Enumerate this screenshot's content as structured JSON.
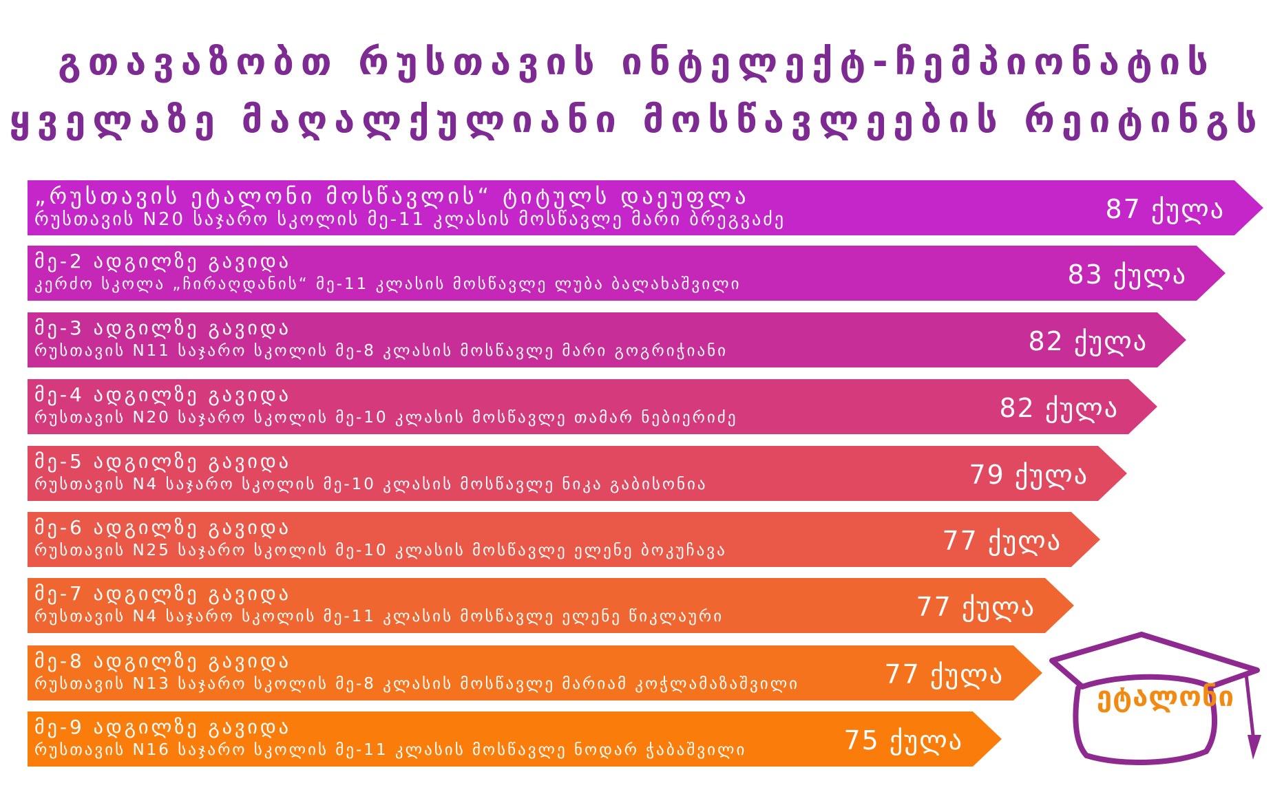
{
  "title": {
    "line1": "გთავაზობთ რუსთავის ინტელექტ-ჩემპიონატის",
    "line2": "ყველაზე მაღალქულიანი მოსწავლეების რეიტინგს"
  },
  "rows": [
    {
      "line1": "„რუსთავის ეტალონი მოსწავლის“ ტიტულს დაეუფლა",
      "line2": "რუსთავის N20 საჯარო სკოლის მე-11 კლასის მოსწავლე მარი ბრეგვაძე",
      "score": "87 ქულა",
      "color": "#c526c9"
    },
    {
      "line1": "მე-2 ადგილზე გავიდა",
      "line2": "კერძო სკოლა „ჩირაღდანის“ მე-11 კლასის მოსწავლე ლუბა ბალახაშვილი",
      "score": "83 ქულა",
      "color": "#c527b6"
    },
    {
      "line1": "მე-3 ადგილზე გავიდა",
      "line2": "რუსთავის N11 საჯარო სკოლის მე-8 კლასის მოსწავლე მარი გოგრიჭიანი",
      "score": "82 ქულა",
      "color": "#c82e98"
    },
    {
      "line1": "მე-4 ადგილზე გავიდა",
      "line2": "რუსთავის N20 საჯარო სკოლის მე-10 კლასის მოსწავლე თამარ ნებიერიძე",
      "score": "82 ქულა",
      "color": "#d53a7c"
    },
    {
      "line1": "მე-5 ადგილზე გავიდა",
      "line2": "რუსთავის N4 საჯარო სკოლის მე-10 კლასის მოსწავლე ნიკა გაბისონია",
      "score": "79 ქულა",
      "color": "#e14961"
    },
    {
      "line1": "მე-6 ადგილზე გავიდა",
      "line2": "რუსთავის N25 საჯარო სკოლის მე-10 კლასის მოსწავლე ელენე ბოკუჩავა",
      "score": "77 ქულა",
      "color": "#ea5848"
    },
    {
      "line1": "მე-7 ადგილზე გავიდა",
      "line2": "რუსთავის N4 საჯარო სკოლის მე-11 კლასის მოსწავლე ელენე წიკლაური",
      "score": "77 ქულა",
      "color": "#ef6630"
    },
    {
      "line1": "მე-8 ადგილზე გავიდა",
      "line2": "რუსთავის N13 საჯარო სკოლის მე-8 კლასის მოსწავლე მარიამ კოჭლამაზაშვილი",
      "score": "77 ქულა",
      "color": "#f5731c"
    },
    {
      "line1": "მე-9 ადგილზე გავიდა",
      "line2": "რუსთავის N16 საჯარო სკოლის მე-11 კლასის მოსწავლე ნოდარ ჭაბაშვილი",
      "score": "75 ქულა",
      "color": "#fa7d0c"
    }
  ],
  "logo": {
    "text": "ეტალონი",
    "cap_color": "#8e2a8f",
    "text_color": "#f08a12"
  }
}
